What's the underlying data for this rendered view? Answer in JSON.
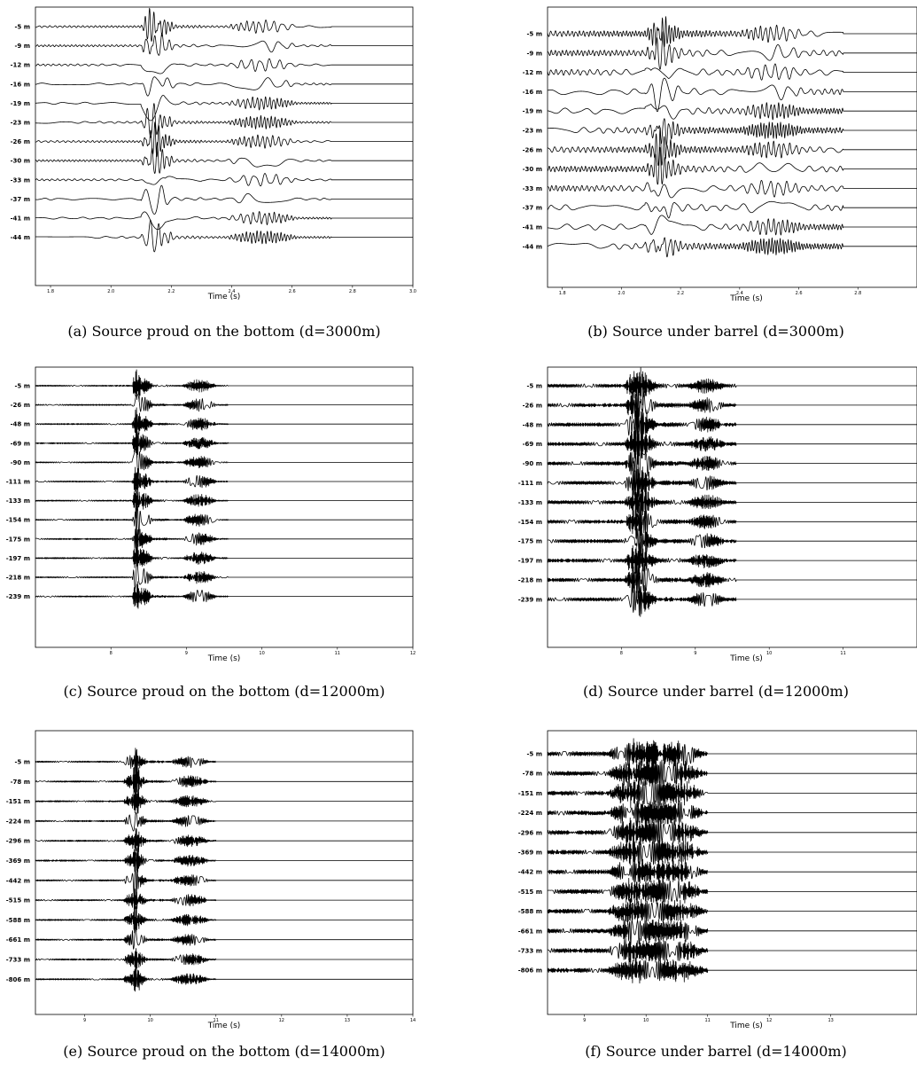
{
  "chart_data": [
    {
      "type": "line",
      "caption": "(a) Source proud on the bottom (d=3000m)",
      "xlabel": "Time (s)",
      "xlim": [
        1.75,
        3.0
      ],
      "xticks": [
        1.8,
        2.0,
        2.2,
        2.4,
        2.6,
        2.8,
        3.0
      ],
      "xtick_labels": [
        "1.8",
        "2.0",
        "2.2",
        "2.4",
        "2.6",
        "2.8",
        "3.0"
      ],
      "series_labels": [
        "-5 m",
        "-9 m",
        "-12 m",
        "-16 m",
        "-19 m",
        "-23 m",
        "-26 m",
        "-30 m",
        "-33 m",
        "-37 m",
        "-41 m",
        "-44 m"
      ],
      "signal": {
        "start": 1.75,
        "end": 2.73,
        "onset": [
          2.1,
          2.18
        ],
        "burst": [
          2.1,
          2.3
        ],
        "burst2": [
          2.38,
          2.62
        ],
        "freq": 32,
        "pre_amp": 0.12
      },
      "grid": false,
      "legend": "none"
    },
    {
      "type": "line",
      "caption": "(b) Source under barrel (d=3000m)",
      "xlabel": "Time (s)",
      "xlim": [
        1.75,
        3.0
      ],
      "xticks": [
        1.8,
        2.0,
        2.2,
        2.4,
        2.6,
        2.8
      ],
      "xtick_labels": [
        "1.8",
        "2.0",
        "2.2",
        "2.4",
        "2.6",
        "2.8"
      ],
      "series_labels": [
        "-5 m",
        "-9 m",
        "-12 m",
        "-16 m",
        "-19 m",
        "-23 m",
        "-26 m",
        "-30 m",
        "-33 m",
        "-37 m",
        "-41 m",
        "-44 m"
      ],
      "signal": {
        "start": 1.75,
        "end": 2.75,
        "onset": [
          2.1,
          2.16
        ],
        "burst": [
          2.08,
          2.3
        ],
        "burst2": [
          2.4,
          2.62
        ],
        "freq": 34,
        "pre_amp": 0.35
      },
      "grid": false,
      "legend": "none"
    },
    {
      "type": "line",
      "caption": "(c) Source proud on the bottom (d=12000m)",
      "xlabel": "Time (s)",
      "xlim": [
        7.0,
        12.0
      ],
      "xticks": [
        8,
        9,
        10,
        11,
        12
      ],
      "xtick_labels": [
        "8",
        "9",
        "10",
        "11",
        "12"
      ],
      "series_labels": [
        "-5 m",
        "-26 m",
        "-48 m",
        "-69 m",
        "-90 m",
        "-111 m",
        "-133 m",
        "-154 m",
        "-175 m",
        "-197 m",
        "-218 m",
        "-239 m"
      ],
      "signal": {
        "start": 7.0,
        "end": 9.55,
        "onset": [
          8.28,
          8.4
        ],
        "burst": [
          8.28,
          8.75
        ],
        "burst2": [
          8.95,
          9.4
        ],
        "freq": 20,
        "pre_amp": 0.08
      },
      "grid": false,
      "legend": "none"
    },
    {
      "type": "line",
      "caption": "(d) Source under barrel (d=12000m)",
      "xlabel": "Time (s)",
      "xlim": [
        7.0,
        12.0
      ],
      "xticks": [
        8,
        9,
        10,
        11
      ],
      "xtick_labels": [
        "8",
        "9",
        "10",
        "11"
      ],
      "series_labels": [
        "-5 m",
        "-26 m",
        "-48 m",
        "-69 m",
        "-90 m",
        "-111 m",
        "-133 m",
        "-154 m",
        "-175 m",
        "-197 m",
        "-218 m",
        "-239 m"
      ],
      "signal": {
        "start": 7.0,
        "end": 9.55,
        "onset": [
          8.05,
          8.4
        ],
        "burst": [
          8.05,
          8.8
        ],
        "burst2": [
          8.9,
          9.4
        ],
        "freq": 20,
        "pre_amp": 0.22
      },
      "grid": false,
      "legend": "none"
    },
    {
      "type": "line",
      "caption": "(e) Source proud on the bottom (d=14000m)",
      "xlabel": "Time (s)",
      "xlim": [
        8.25,
        14.0
      ],
      "xticks": [
        9,
        10,
        11,
        12,
        13,
        14
      ],
      "xtick_labels": [
        "9",
        "10",
        "11",
        "12",
        "13",
        "14"
      ],
      "series_labels": [
        "-5 m",
        "-78 m",
        "-151 m",
        "-224 m",
        "-296 m",
        "-369 m",
        "-442 m",
        "-515 m",
        "-588 m",
        "-661 m",
        "-733 m",
        "-806 m"
      ],
      "signal": {
        "start": 8.25,
        "end": 11.0,
        "onset": [
          9.72,
          9.85
        ],
        "burst": [
          9.6,
          10.2
        ],
        "burst2": [
          10.3,
          10.9
        ],
        "freq": 16,
        "pre_amp": 0.1
      },
      "grid": false,
      "legend": "none"
    },
    {
      "type": "line",
      "caption": "(f) Source under barrel (d=14000m)",
      "xlabel": "Time (s)",
      "xlim": [
        8.4,
        14.4
      ],
      "xticks": [
        9,
        10,
        11,
        12,
        13
      ],
      "xtick_labels": [
        "9",
        "10",
        "11",
        "12",
        "13"
      ],
      "series_labels": [
        "-5 m",
        "-78 m",
        "-151 m",
        "-224 m",
        "-296 m",
        "-369 m",
        "-442 m",
        "-515 m",
        "-588 m",
        "-661 m",
        "-733 m",
        "-806 m"
      ],
      "signal": {
        "start": 8.4,
        "end": 11.0,
        "onset": [
          9.5,
          10.85
        ],
        "burst": [
          9.4,
          10.4
        ],
        "burst2": [
          10.4,
          10.95
        ],
        "freq": 16,
        "pre_amp": 0.3
      },
      "grid": false,
      "legend": "none"
    }
  ]
}
